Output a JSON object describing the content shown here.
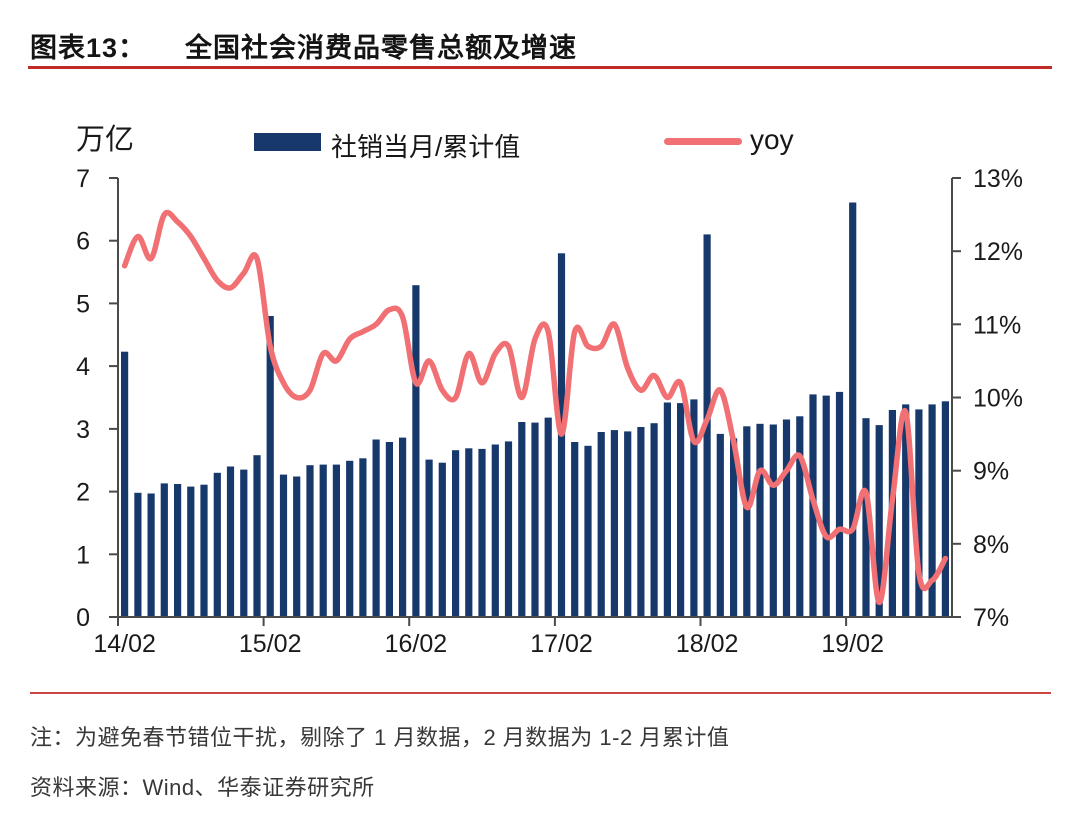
{
  "header": {
    "label": "图表13：",
    "title": "全国社会消费品零售总额及增速"
  },
  "y_left_unit": "万亿",
  "legend": {
    "bar_label": "社销当月/累计值",
    "line_label": "yoy"
  },
  "footer": {
    "note": "注：为避免春节错位干扰，剔除了 1 月数据，2 月数据为 1-2 月累计值",
    "source": "资料来源：Wind、华泰证券研究所"
  },
  "colors": {
    "bar": "#17386b",
    "line": "#f07073",
    "accent_red": "#c22a28",
    "divider_red": "#cb4543",
    "axis": "#4a4a4a",
    "text": "#1a1a1a"
  },
  "chart_data": {
    "type": "bar",
    "title": "全国社会消费品零售总额及增速",
    "xlabel": "",
    "ylabel": "万亿",
    "grid": false,
    "legend_position": "top",
    "categories": [
      "14/02",
      "14/03",
      "14/04",
      "14/05",
      "14/06",
      "14/07",
      "14/08",
      "14/09",
      "14/10",
      "14/11",
      "14/12",
      "15/02",
      "15/03",
      "15/04",
      "15/05",
      "15/06",
      "15/07",
      "15/08",
      "15/09",
      "15/10",
      "15/11",
      "15/12",
      "16/02",
      "16/03",
      "16/04",
      "16/05",
      "16/06",
      "16/07",
      "16/08",
      "16/09",
      "16/10",
      "16/11",
      "16/12",
      "17/02",
      "17/03",
      "17/04",
      "17/05",
      "17/06",
      "17/07",
      "17/08",
      "17/09",
      "17/10",
      "17/11",
      "17/12",
      "18/02",
      "18/03",
      "18/04",
      "18/05",
      "18/06",
      "18/07",
      "18/08",
      "18/09",
      "18/10",
      "18/11",
      "18/12",
      "19/02",
      "19/03",
      "19/04",
      "19/05",
      "19/06",
      "19/07",
      "19/08",
      "19/09"
    ],
    "x_tick_labels": [
      "14/02",
      "15/02",
      "16/02",
      "17/02",
      "18/02",
      "19/02"
    ],
    "y_left": {
      "min": 0,
      "max": 7,
      "ticks": [
        0,
        1,
        2,
        3,
        4,
        5,
        6,
        7
      ],
      "label": "万亿"
    },
    "y_right": {
      "min": 7,
      "max": 13,
      "ticks": [
        "7%",
        "8%",
        "9%",
        "10%",
        "11%",
        "12%",
        "13%"
      ]
    },
    "series": [
      {
        "name": "社销当月/累计值",
        "type": "bar",
        "axis": "left",
        "unit": "万亿",
        "values": [
          4.23,
          1.98,
          1.97,
          2.13,
          2.12,
          2.08,
          2.11,
          2.3,
          2.4,
          2.35,
          2.58,
          4.8,
          2.27,
          2.24,
          2.42,
          2.43,
          2.43,
          2.49,
          2.53,
          2.83,
          2.79,
          2.86,
          5.29,
          2.51,
          2.46,
          2.66,
          2.69,
          2.68,
          2.75,
          2.8,
          3.11,
          3.1,
          3.18,
          5.8,
          2.79,
          2.73,
          2.95,
          2.98,
          2.96,
          3.03,
          3.09,
          3.42,
          3.41,
          3.47,
          6.1,
          2.92,
          2.85,
          3.04,
          3.08,
          3.07,
          3.15,
          3.2,
          3.55,
          3.53,
          3.59,
          6.61,
          3.17,
          3.06,
          3.3,
          3.39,
          3.31,
          3.39,
          3.44
        ]
      },
      {
        "name": "yoy",
        "type": "line",
        "axis": "right",
        "unit": "%",
        "values": [
          11.8,
          12.2,
          11.9,
          12.5,
          12.4,
          12.2,
          11.9,
          11.6,
          11.5,
          11.7,
          11.9,
          10.7,
          10.2,
          10.0,
          10.1,
          10.6,
          10.5,
          10.8,
          10.9,
          11.0,
          11.2,
          11.1,
          10.2,
          10.5,
          10.1,
          10.0,
          10.6,
          10.2,
          10.6,
          10.7,
          10.0,
          10.8,
          10.9,
          9.5,
          10.9,
          10.7,
          10.7,
          11.0,
          10.4,
          10.1,
          10.3,
          10.0,
          10.2,
          9.4,
          9.7,
          10.1,
          9.4,
          8.5,
          9.0,
          8.8,
          9.0,
          9.2,
          8.6,
          8.1,
          8.2,
          8.2,
          8.7,
          7.2,
          8.6,
          9.8,
          7.6,
          7.5,
          7.8
        ]
      }
    ]
  }
}
